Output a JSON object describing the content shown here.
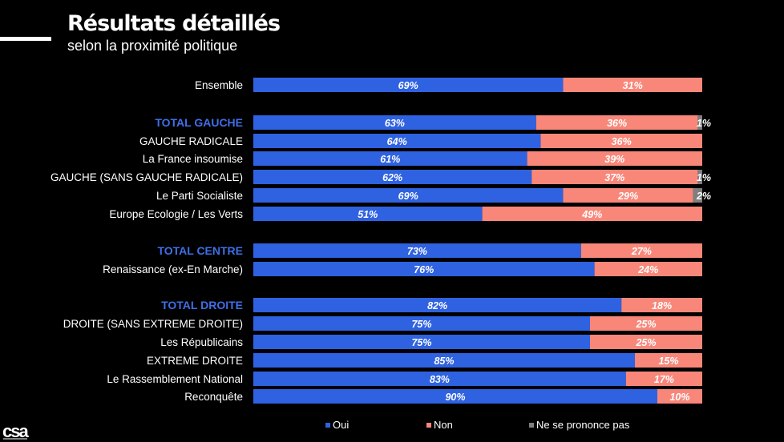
{
  "header": {
    "title": "Résultats détaillés",
    "subtitle": "selon la proximité politique"
  },
  "logo_text": "csa",
  "colors": {
    "oui": "#2f62e0",
    "non": "#f8877a",
    "nspp": "#7f7f7f",
    "group_label": "#3f6fe8"
  },
  "chart_data": {
    "type": "bar",
    "orientation": "horizontal",
    "stacked": true,
    "percent_scale": [
      0,
      100
    ],
    "categories": [
      "Ensemble",
      "TOTAL GAUCHE",
      "GAUCHE RADICALE",
      "La France insoumise",
      "GAUCHE (SANS GAUCHE RADICALE)",
      "Le Parti Socialiste",
      "Europe Ecologie / Les Verts",
      "TOTAL CENTRE",
      "Renaissance (ex-En Marche)",
      "TOTAL DROITE",
      "DROITE (SANS EXTREME DROITE)",
      "Les Républicains",
      "EXTREME DROITE",
      "Le Rassemblement National",
      "Reconquête"
    ],
    "group_headers": [
      "TOTAL GAUCHE",
      "TOTAL CENTRE",
      "TOTAL DROITE"
    ],
    "series": [
      {
        "name": "Oui",
        "values": [
          69,
          63,
          64,
          61,
          62,
          69,
          51,
          73,
          76,
          82,
          75,
          75,
          85,
          83,
          90
        ]
      },
      {
        "name": "Non",
        "values": [
          31,
          36,
          36,
          39,
          37,
          29,
          49,
          27,
          24,
          18,
          25,
          25,
          15,
          17,
          10
        ]
      },
      {
        "name": "Ne se prononce pas",
        "values": [
          0,
          1,
          0,
          0,
          1,
          2,
          0,
          0,
          0,
          0,
          0,
          0,
          0,
          0,
          0
        ]
      }
    ],
    "legend_position": "bottom"
  }
}
